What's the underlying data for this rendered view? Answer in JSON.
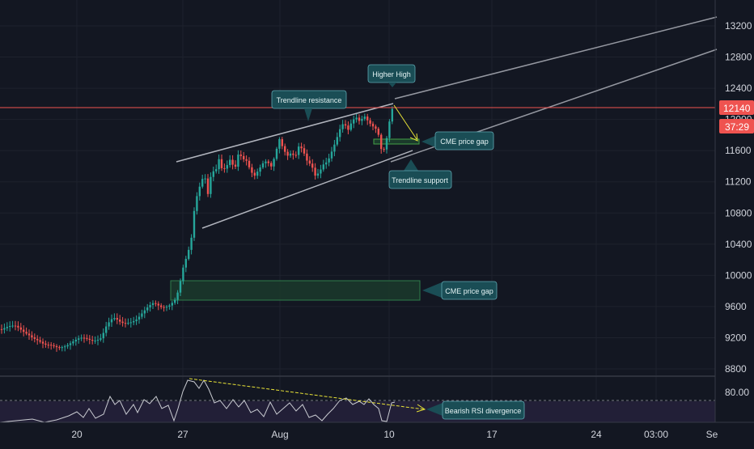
{
  "chart_data": {
    "type": "candlestick",
    "y_axis": {
      "ticks": [
        13200,
        12800,
        12400,
        12000,
        11600,
        11200,
        10800,
        10400,
        10000,
        9600,
        9200,
        8800
      ],
      "range": [
        8600,
        13450
      ]
    },
    "x_axis": {
      "ticks": [
        "20",
        "27",
        "Aug",
        "10",
        "17",
        "24",
        "03:00",
        "Se"
      ]
    },
    "current_price": {
      "value": "12140",
      "countdown": "37:29"
    },
    "rsi_panel": {
      "level_label": "80.00"
    },
    "annotations": {
      "higher_high": "Higher High",
      "trendline_resistance": "Trendline resistance",
      "cme_gap_small": "CME price gap",
      "trendline_support": "Trendline support",
      "cme_gap_large": "CME price gap",
      "rsi_divergence": "Bearish RSI divergence"
    },
    "colors": {
      "up": "#26a69a",
      "down": "#ef5350",
      "background": "#131722",
      "annotation": "#1a4d55",
      "price_line": "#ef5350"
    }
  }
}
